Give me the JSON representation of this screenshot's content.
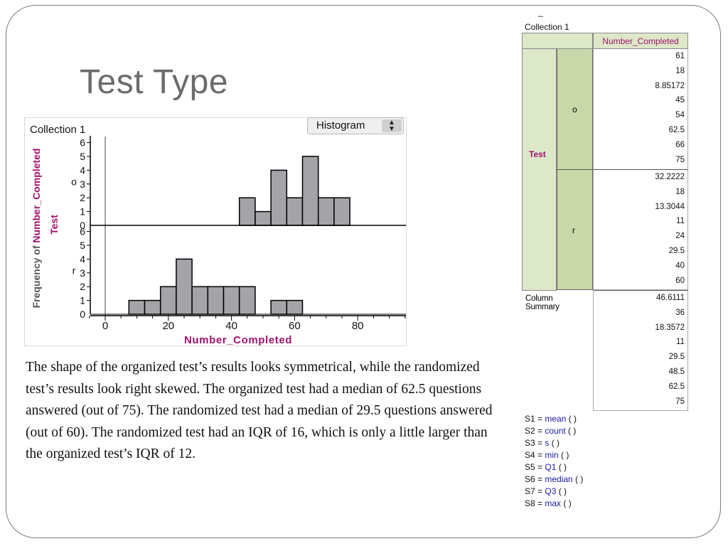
{
  "title": "Test Type",
  "chart_data": {
    "type": "bar",
    "collection": "Collection 1",
    "menu_label": "Histogram",
    "xlabel": "Number_Completed",
    "ylabel_prefix": "Frequency of ",
    "ylabel_attr": "Number_Completed",
    "group_attr": "Test",
    "xlim": [
      -5,
      95
    ],
    "xticks": [
      0,
      20,
      40,
      60,
      80
    ],
    "bin_width": 5,
    "yticks": [
      1,
      2,
      3,
      4,
      5,
      6
    ],
    "ylim": [
      0,
      6
    ],
    "series": [
      {
        "name": "o",
        "bin_starts": [
          42.5,
          47.5,
          52.5,
          57.5,
          62.5,
          67.5,
          72.5
        ],
        "counts": [
          2,
          1,
          4,
          2,
          5,
          2,
          2
        ]
      },
      {
        "name": "r",
        "bin_starts": [
          7.5,
          12.5,
          17.5,
          22.5,
          27.5,
          32.5,
          37.5,
          42.5,
          52.5,
          57.5
        ],
        "counts": [
          1,
          1,
          2,
          4,
          2,
          2,
          2,
          2,
          1,
          1
        ]
      }
    ]
  },
  "summary_table": {
    "dash": "_",
    "collection": "Collection 1",
    "header": "Number_Completed",
    "row_label": "Test",
    "groups": [
      {
        "name": "o",
        "values": [
          "61",
          "18",
          "8.85172",
          "45",
          "54",
          "62.5",
          "66",
          "75"
        ]
      },
      {
        "name": "r",
        "values": [
          "32.2222",
          "18",
          "13.3044",
          "11",
          "24",
          "29.5",
          "40",
          "60"
        ]
      }
    ],
    "column_summary_label": "Column Summary",
    "column_summary": [
      "46.6111",
      "36",
      "18.3572",
      "11",
      "29.5",
      "48.5",
      "62.5",
      "75"
    ],
    "legend": [
      {
        "label": "S1 = ",
        "fn": "mean",
        "args": " (  )"
      },
      {
        "label": "S2 = ",
        "fn": "count",
        "args": " (  )"
      },
      {
        "label": "S3 = ",
        "fn": "s",
        "args": " (  )"
      },
      {
        "label": "S4 = ",
        "fn": "min",
        "args": " (  )"
      },
      {
        "label": "S5 = ",
        "fn": "Q1",
        "args": " (  )"
      },
      {
        "label": "S6 = ",
        "fn": "median",
        "args": " (  )"
      },
      {
        "label": "S7 = ",
        "fn": "Q3",
        "args": " (  )"
      },
      {
        "label": "S8 = ",
        "fn": "max",
        "args": " (  )"
      }
    ]
  },
  "paragraph": "The shape of the organized test’s results looks symmetrical, while the randomized test’s results look right skewed. The organized test had a median of 62.5 questions answered (out of 75). The randomized test had a median of 29.5 questions answered (out of 60).  The randomized test had an IQR of 16, which is only a little larger than the organized test’s IQR of 12.",
  "colors": {
    "bar_fill": "#a3a3a8",
    "accent": "#a0126e",
    "table_fill": "#dde8c8",
    "table_fill_dark": "#c8d8a8",
    "fn_color": "#1a1aa6"
  }
}
